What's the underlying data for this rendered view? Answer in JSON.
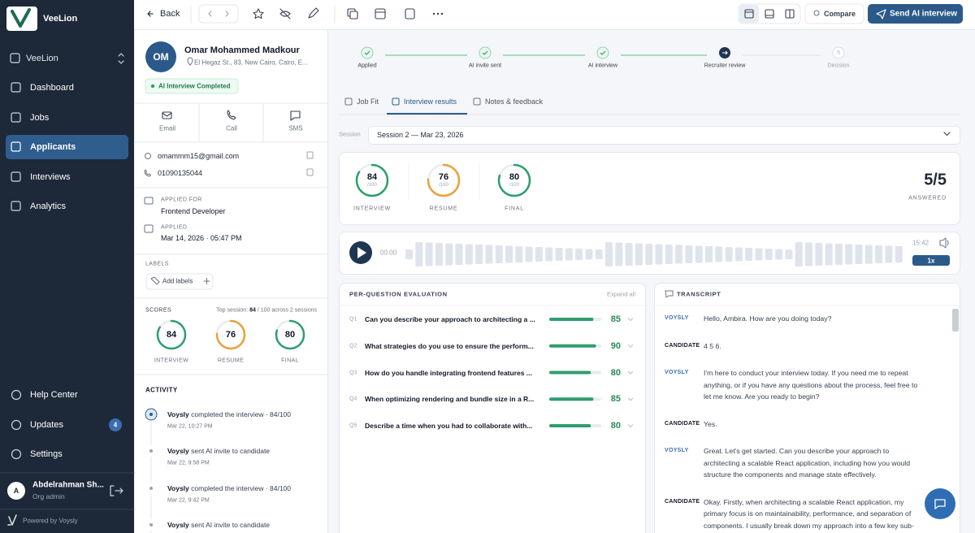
{
  "sidebar": {
    "brand": "VeeLion",
    "org": "VeeLion",
    "nav": [
      "Dashboard",
      "Jobs",
      "Applicants",
      "Interviews",
      "Analytics"
    ],
    "active": 2,
    "bottom_nav": [
      "Help Center",
      "Updates",
      "Settings"
    ],
    "updates_badge": 4,
    "user": {
      "initial": "A",
      "name": "Abdelrahman Sh...",
      "role": "Org admin"
    },
    "powered": "Powered by Voysly"
  },
  "toolbar": {
    "back": "Back",
    "compare": "Compare",
    "send": "Send AI interview"
  },
  "profile": {
    "initials": "OM",
    "name": "Omar Mohammed Madkour",
    "address": "El Hegaz St., 83, New Cairo, Cairo, E...",
    "status": "AI Interview Completed",
    "contact_actions": [
      "Email",
      "Call",
      "SMS"
    ],
    "email": "omammm15@gmail.com",
    "phone": "01090135044",
    "applied_for_label": "APPLIED FOR",
    "applied_for": "Frontend Developer",
    "applied_label": "APPLIED",
    "applied": "Mar 14, 2026 · 05:47 PM",
    "labels_title": "LABELS",
    "add_labels": "Add labels",
    "scores_title": "SCORES",
    "top_session_prefix": "Top session:",
    "top_session_score": "84",
    "top_session_suffix": "/ 100 across 2 sessions",
    "score_max": 100,
    "scores": [
      {
        "label": "INTERVIEW",
        "value": 84,
        "color": "#2f9e6e"
      },
      {
        "label": "RESUME",
        "value": 76,
        "color": "#e9a23b"
      },
      {
        "label": "FINAL",
        "value": 80,
        "color": "#2f9e6e"
      }
    ],
    "activity_title": "ACTIVITY",
    "activity": [
      {
        "actor": "Voysly",
        "text": "completed the interview · 84/100",
        "time": "Mar 22, 10:27 PM"
      },
      {
        "actor": "Voysly",
        "text": "sent AI invite to candidate",
        "time": "Mar 22, 9:58 PM"
      },
      {
        "actor": "Voysly",
        "text": "completed the interview · 84/100",
        "time": "Mar 22, 9:42 PM"
      },
      {
        "actor": "Voysly",
        "text": "sent AI invite to candidate"
      }
    ]
  },
  "steps": [
    {
      "label": "Applied",
      "status": "done"
    },
    {
      "label": "AI invite sent",
      "status": "done"
    },
    {
      "label": "AI interview",
      "status": "done"
    },
    {
      "label": "Recruiter review",
      "status": "current"
    },
    {
      "label": "Decision",
      "status": "pending",
      "number": 5
    }
  ],
  "tabs": {
    "items": [
      "Job Fit",
      "Interview results",
      "Notes & feedback"
    ],
    "active": 1
  },
  "session": {
    "label": "Session",
    "value": "Session 2 — Mar 23, 2026"
  },
  "results": {
    "score_max": 100,
    "scores": [
      {
        "label": "INTERVIEW",
        "value": 84,
        "max_label": "/100",
        "color": "#2f9e6e"
      },
      {
        "label": "RESUME",
        "value": 76,
        "max_label": "/100",
        "color": "#e9a23b"
      },
      {
        "label": "FINAL",
        "value": 80,
        "max_label": "/100",
        "color": "#2f9e6e"
      }
    ],
    "answered": "5/5",
    "answered_label": "ANSWERED"
  },
  "player": {
    "elapsed": "00:00",
    "duration": "15:42",
    "speed": "1x"
  },
  "evaluation": {
    "title": "PER-QUESTION EVALUATION",
    "expand": "Expand all",
    "score_max": 100,
    "questions": [
      {
        "id": "Q1",
        "text": "Can you describe your approach to architecting a ...",
        "score": 85
      },
      {
        "id": "Q2",
        "text": "What strategies do you use to ensure the perform...",
        "score": 90
      },
      {
        "id": "Q3",
        "text": "How do you handle integrating frontend features ...",
        "score": 80
      },
      {
        "id": "Q4",
        "text": "When optimizing rendering and bundle size in a R...",
        "score": 85
      },
      {
        "id": "Q5",
        "text": "Describe a time when you had to collaborate with...",
        "score": 80
      }
    ]
  },
  "transcript": {
    "title": "TRANSCRIPT",
    "entries": [
      {
        "speaker": "VOYSLY",
        "text": "Hello, Ambira. How are you doing today?"
      },
      {
        "speaker": "CANDIDATE",
        "text": "4 5 6."
      },
      {
        "speaker": "VOYSLY",
        "text": "I'm here to conduct your interview today. If you need me to repeat anything, or if you have any questions about the process, feel free to let me know. Are you ready to begin?"
      },
      {
        "speaker": "CANDIDATE",
        "text": "Yes."
      },
      {
        "speaker": "VOYSLY",
        "text": "Great. Let's get started. Can you describe your approach to architecting a scalable React application, including how you would structure the components and manage state effectively."
      },
      {
        "speaker": "CANDIDATE",
        "text": "Okay. Firstly, when architecting a scalable React application, my primary focus is on maintainability, performance, and separation of components. I usually break down my approach into a few key sub-areas. Uh, first, uh, feature-based folder structure."
      }
    ]
  }
}
